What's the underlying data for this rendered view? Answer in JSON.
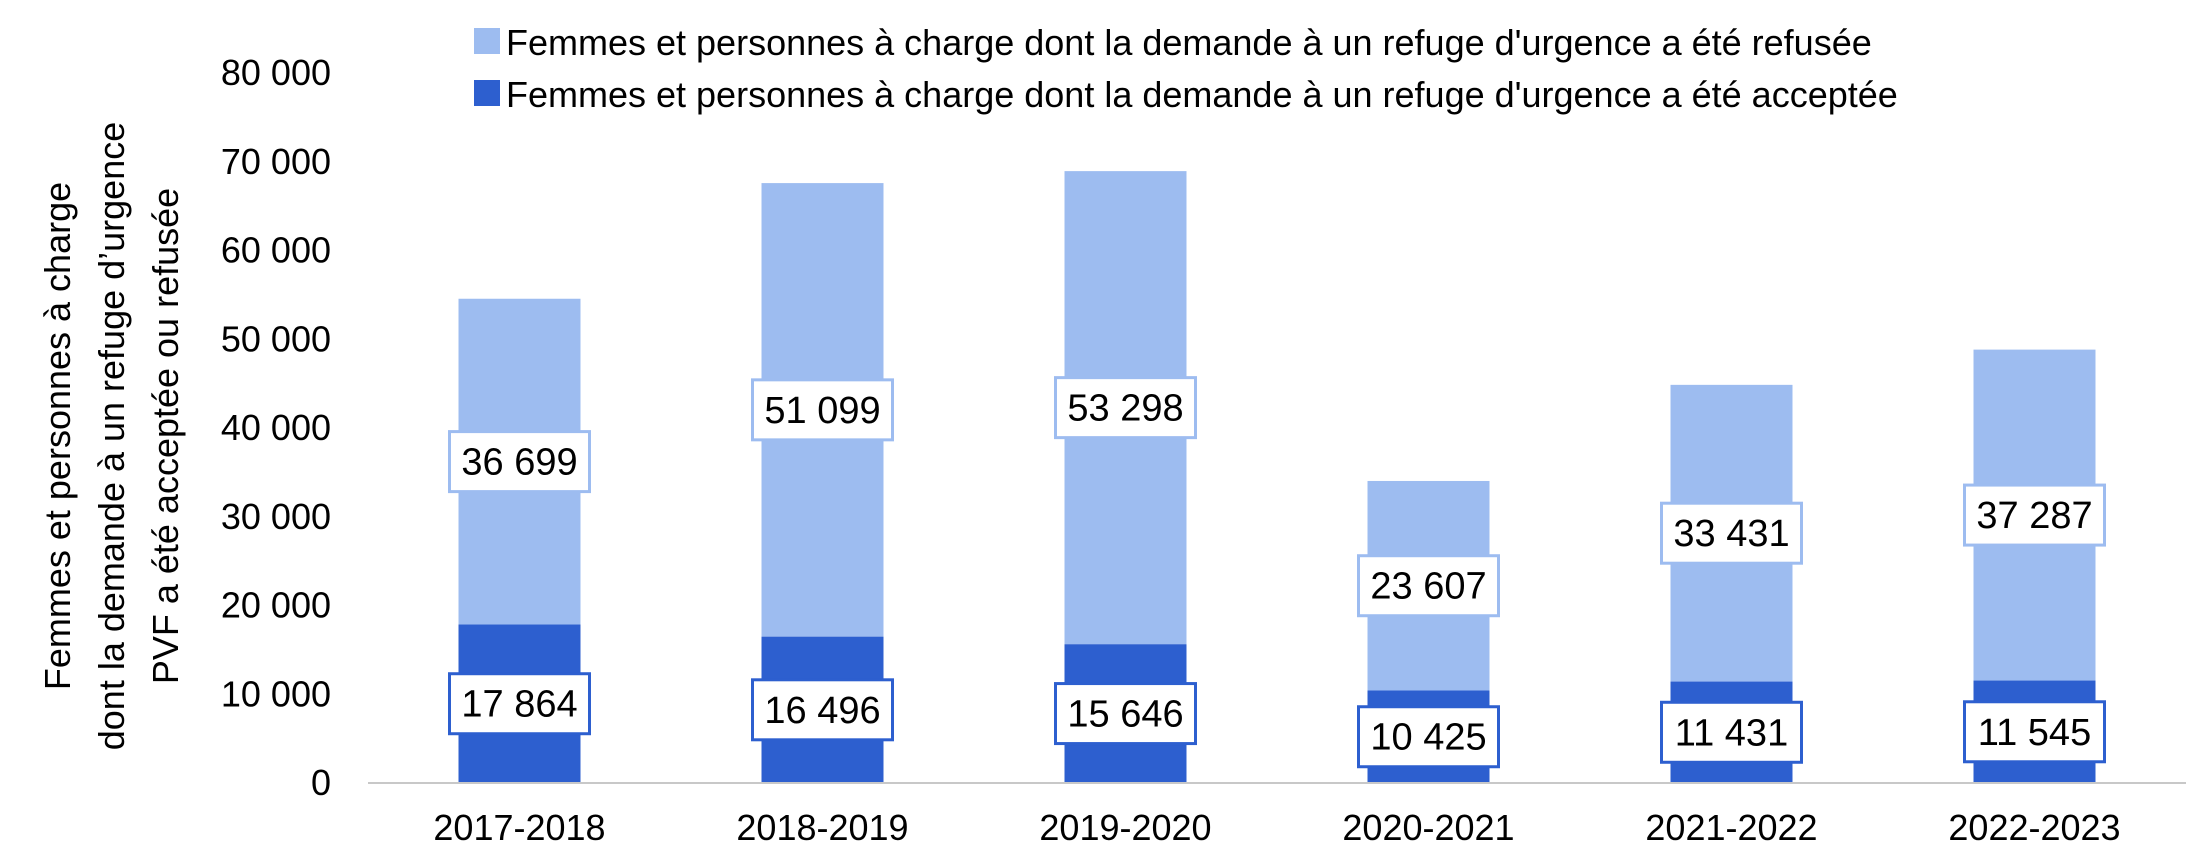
{
  "chart_data": {
    "type": "bar",
    "stacked": true,
    "categories": [
      "2017-2018",
      "2018-2019",
      "2019-2020",
      "2020-2021",
      "2021-2022",
      "2022-2023"
    ],
    "series": [
      {
        "name": "Femmes et personnes à charge dont la demande à un refuge d'urgence a été acceptée",
        "values": [
          17864,
          16496,
          15646,
          10425,
          11431,
          11545
        ],
        "labels": [
          "17 864",
          "16 496",
          "15 646",
          "10 425",
          "11 431",
          "11 545"
        ],
        "color": "#2d5fcf"
      },
      {
        "name": "Femmes et personnes à charge dont la demande à un refuge d'urgence a été refusée",
        "values": [
          36699,
          51099,
          53298,
          23607,
          33431,
          37287
        ],
        "labels": [
          "36 699",
          "51 099",
          "53 298",
          "23 607",
          "33 431",
          "37 287"
        ],
        "color": "#9dbcf0"
      }
    ],
    "ylim": [
      0,
      80000
    ],
    "yticks": [
      0,
      10000,
      20000,
      30000,
      40000,
      50000,
      60000,
      70000,
      80000
    ],
    "ytick_labels": [
      "0",
      "10 000",
      "20 000",
      "30 000",
      "40 000",
      "50 000",
      "60 000",
      "70 000",
      "80 000"
    ],
    "ylabel_lines": [
      "Femmes et personnes à charge",
      "dont la demande à un refuge d’urgence",
      "PVF a été acceptée ou refusée"
    ],
    "xlabel": "",
    "title": "",
    "grid": false,
    "legend_position": "top"
  }
}
